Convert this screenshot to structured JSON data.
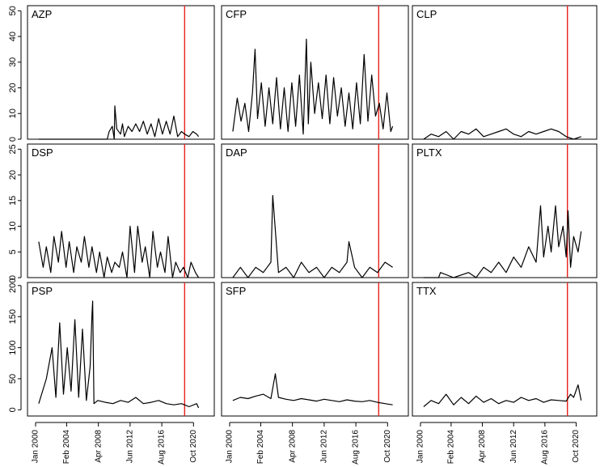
{
  "chart_data": {
    "type": "line",
    "layout": "3x3 small multiples, shared x axis per column, shared y axis per row",
    "x_range": [
      "2000-01",
      "2022-06"
    ],
    "x_ticks": [
      "Jan 2000",
      "Feb 2004",
      "Apr 2008",
      "Jun 2012",
      "Aug 2016",
      "Oct 2020"
    ],
    "x_tick_dates": [
      "2000-01",
      "2004-02",
      "2008-04",
      "2012-06",
      "2016-08",
      "2020-10"
    ],
    "reference_line": {
      "date": "2019-08",
      "color": "#e8201c"
    },
    "line_color": "#000000",
    "rows": [
      {
        "y_range": [
          0,
          52
        ],
        "y_ticks": [
          0,
          10,
          20,
          30,
          40,
          50
        ]
      },
      {
        "y_range": [
          0,
          26
        ],
        "y_ticks": [
          0,
          5,
          10,
          15,
          20,
          25
        ]
      },
      {
        "y_range": [
          -10,
          205
        ],
        "y_ticks": [
          0,
          50,
          100,
          150,
          200
        ]
      }
    ],
    "panels": [
      {
        "name": "AZP",
        "row": 0,
        "col": 0,
        "x": [
          "2000-06",
          "2009-06",
          "2009-09",
          "2010-02",
          "2010-05",
          "2010-06",
          "2010-09",
          "2011-03",
          "2011-06",
          "2011-09",
          "2012-03",
          "2012-09",
          "2013-03",
          "2013-09",
          "2014-03",
          "2014-09",
          "2015-03",
          "2015-09",
          "2016-03",
          "2016-09",
          "2017-03",
          "2017-09",
          "2018-03",
          "2018-09",
          "2019-03",
          "2019-08",
          "2020-03",
          "2020-09",
          "2021-03",
          "2021-06"
        ],
        "values": [
          0,
          0,
          3,
          5,
          0,
          13,
          4,
          2,
          6,
          1,
          5,
          3,
          6,
          3,
          7,
          2,
          6,
          1,
          8,
          2,
          7,
          2,
          9,
          1,
          3,
          2,
          1,
          3,
          2,
          1
        ]
      },
      {
        "name": "CFP",
        "row": 0,
        "col": 1,
        "x": [
          "2000-06",
          "2001-01",
          "2001-07",
          "2002-01",
          "2002-07",
          "2003-01",
          "2003-05",
          "2003-09",
          "2004-03",
          "2004-09",
          "2005-03",
          "2005-09",
          "2006-03",
          "2006-09",
          "2007-03",
          "2007-09",
          "2008-03",
          "2008-09",
          "2009-03",
          "2009-09",
          "2010-02",
          "2010-05",
          "2010-09",
          "2011-03",
          "2011-09",
          "2012-03",
          "2012-09",
          "2013-03",
          "2013-09",
          "2014-03",
          "2014-09",
          "2015-03",
          "2015-09",
          "2016-03",
          "2016-09",
          "2017-03",
          "2017-09",
          "2018-03",
          "2018-09",
          "2019-03",
          "2019-09",
          "2020-03",
          "2020-09",
          "2021-03",
          "2021-06"
        ],
        "values": [
          3,
          16,
          7,
          14,
          3,
          18,
          35,
          8,
          22,
          5,
          20,
          6,
          24,
          4,
          20,
          3,
          22,
          5,
          25,
          2,
          39,
          6,
          30,
          10,
          22,
          8,
          25,
          6,
          24,
          9,
          20,
          5,
          18,
          4,
          22,
          6,
          33,
          7,
          25,
          9,
          14,
          4,
          18,
          3,
          5
        ]
      },
      {
        "name": "CLP",
        "row": 0,
        "col": 2,
        "x": [
          "2000-06",
          "2001-06",
          "2002-06",
          "2003-06",
          "2004-06",
          "2005-06",
          "2006-06",
          "2007-06",
          "2008-06",
          "2009-06",
          "2010-06",
          "2011-06",
          "2012-06",
          "2013-06",
          "2014-06",
          "2015-06",
          "2016-06",
          "2017-06",
          "2018-06",
          "2019-06",
          "2020-06",
          "2021-06"
        ],
        "values": [
          0,
          2,
          1,
          3,
          0,
          3,
          2,
          4,
          1,
          2,
          3,
          4,
          2,
          1,
          3,
          2,
          3,
          4,
          3,
          1,
          0,
          1
        ]
      },
      {
        "name": "DSP",
        "row": 1,
        "col": 0,
        "x": [
          "2000-06",
          "2001-01",
          "2001-06",
          "2002-01",
          "2002-06",
          "2003-01",
          "2003-06",
          "2004-01",
          "2004-06",
          "2005-01",
          "2005-06",
          "2006-01",
          "2006-06",
          "2007-01",
          "2007-06",
          "2008-01",
          "2008-06",
          "2009-01",
          "2009-06",
          "2010-01",
          "2010-06",
          "2011-01",
          "2011-06",
          "2012-01",
          "2012-06",
          "2013-01",
          "2013-06",
          "2014-01",
          "2014-06",
          "2015-01",
          "2015-06",
          "2016-01",
          "2016-06",
          "2017-01",
          "2017-06",
          "2018-01",
          "2018-06",
          "2019-01",
          "2019-06",
          "2020-01",
          "2020-06",
          "2021-01",
          "2021-06"
        ],
        "values": [
          7,
          2,
          6,
          1,
          8,
          3,
          9,
          2,
          7,
          1,
          6,
          3,
          8,
          2,
          6,
          1,
          5,
          0,
          4,
          1,
          3,
          2,
          5,
          0,
          10,
          1,
          10,
          3,
          6,
          0,
          9,
          2,
          5,
          1,
          8,
          0,
          3,
          1,
          2,
          0,
          3,
          1,
          0
        ]
      },
      {
        "name": "DAP",
        "row": 1,
        "col": 1,
        "x": [
          "2000-06",
          "2001-06",
          "2002-06",
          "2003-06",
          "2004-06",
          "2005-06",
          "2005-09",
          "2006-06",
          "2007-06",
          "2008-06",
          "2009-06",
          "2010-06",
          "2011-06",
          "2012-06",
          "2013-06",
          "2014-06",
          "2015-06",
          "2015-09",
          "2016-06",
          "2017-06",
          "2018-06",
          "2019-06",
          "2020-06",
          "2021-06"
        ],
        "values": [
          0,
          2,
          0,
          2,
          1,
          3,
          16,
          1,
          2,
          0,
          3,
          1,
          2,
          0,
          2,
          1,
          3,
          7,
          2,
          0,
          2,
          1,
          3,
          2
        ]
      },
      {
        "name": "PLTX",
        "row": 1,
        "col": 2,
        "x": [
          "2000-06",
          "2002-06",
          "2002-09",
          "2004-06",
          "2006-06",
          "2007-06",
          "2008-06",
          "2009-06",
          "2010-06",
          "2011-06",
          "2012-06",
          "2013-06",
          "2014-06",
          "2015-06",
          "2016-01",
          "2016-06",
          "2017-01",
          "2017-06",
          "2018-01",
          "2018-06",
          "2019-01",
          "2019-06",
          "2019-09",
          "2020-01",
          "2020-06",
          "2021-01",
          "2021-06"
        ],
        "values": [
          0,
          0,
          1,
          0,
          1,
          0,
          2,
          1,
          3,
          1,
          4,
          2,
          6,
          3,
          14,
          4,
          10,
          5,
          14,
          6,
          10,
          4,
          13,
          2,
          8,
          5,
          9
        ]
      },
      {
        "name": "PSP",
        "row": 2,
        "col": 0,
        "x": [
          "2000-06",
          "2001-06",
          "2002-03",
          "2002-09",
          "2003-03",
          "2003-09",
          "2004-03",
          "2004-09",
          "2005-03",
          "2005-09",
          "2006-03",
          "2006-09",
          "2007-03",
          "2007-06",
          "2007-07",
          "2007-09",
          "2008-03",
          "2009-03",
          "2010-03",
          "2011-03",
          "2012-03",
          "2013-03",
          "2014-03",
          "2015-03",
          "2016-03",
          "2017-03",
          "2018-03",
          "2019-03",
          "2020-03",
          "2021-03",
          "2021-06"
        ],
        "values": [
          10,
          50,
          100,
          20,
          140,
          25,
          100,
          30,
          145,
          20,
          130,
          15,
          70,
          155,
          175,
          10,
          15,
          12,
          10,
          15,
          12,
          20,
          10,
          12,
          15,
          10,
          8,
          10,
          5,
          10,
          3
        ]
      },
      {
        "name": "SFP",
        "row": 2,
        "col": 1,
        "x": [
          "2000-06",
          "2001-06",
          "2002-06",
          "2003-06",
          "2004-06",
          "2005-06",
          "2006-01",
          "2006-06",
          "2007-06",
          "2008-06",
          "2009-06",
          "2010-06",
          "2011-06",
          "2012-06",
          "2013-06",
          "2014-06",
          "2015-06",
          "2016-06",
          "2017-06",
          "2018-06",
          "2019-06",
          "2020-06",
          "2021-06"
        ],
        "values": [
          15,
          20,
          18,
          22,
          25,
          18,
          58,
          20,
          17,
          15,
          18,
          16,
          14,
          17,
          15,
          13,
          16,
          14,
          13,
          15,
          12,
          10,
          8
        ]
      },
      {
        "name": "TTX",
        "row": 2,
        "col": 2,
        "x": [
          "2000-06",
          "2001-06",
          "2002-06",
          "2003-06",
          "2004-06",
          "2005-06",
          "2006-06",
          "2007-06",
          "2008-06",
          "2009-06",
          "2010-06",
          "2011-06",
          "2012-06",
          "2013-06",
          "2014-06",
          "2015-06",
          "2016-06",
          "2017-06",
          "2018-06",
          "2019-06",
          "2020-01",
          "2020-06",
          "2021-01",
          "2021-06"
        ],
        "values": [
          5,
          15,
          10,
          25,
          8,
          20,
          10,
          22,
          12,
          18,
          10,
          15,
          12,
          20,
          15,
          18,
          12,
          16,
          15,
          14,
          25,
          20,
          40,
          15
        ]
      }
    ]
  }
}
